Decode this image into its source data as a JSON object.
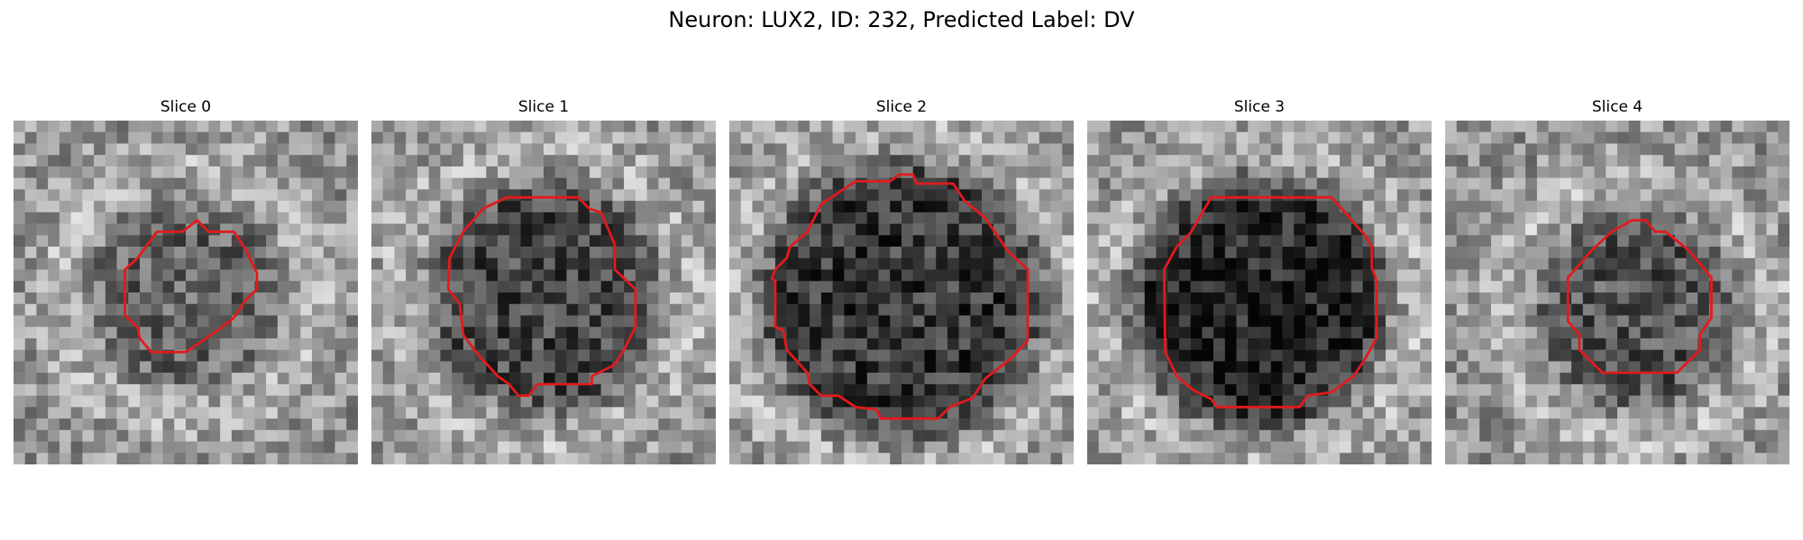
{
  "figure": {
    "title": "Neuron: LUX2, ID: 232, Predicted Label: DV"
  },
  "colors": {
    "contour": "#e31a1c",
    "colormap": "grayscale"
  },
  "panels": [
    {
      "label": "Slice 0",
      "blob_darkness": 0.35,
      "contour_size": 0.38
    },
    {
      "label": "Slice 1",
      "blob_darkness": 0.55,
      "contour_size": 0.55
    },
    {
      "label": "Slice 2",
      "blob_darkness": 0.65,
      "contour_size": 0.74
    },
    {
      "label": "Slice 3",
      "blob_darkness": 0.8,
      "contour_size": 0.62
    },
    {
      "label": "Slice 4",
      "blob_darkness": 0.45,
      "contour_size": 0.42
    }
  ]
}
